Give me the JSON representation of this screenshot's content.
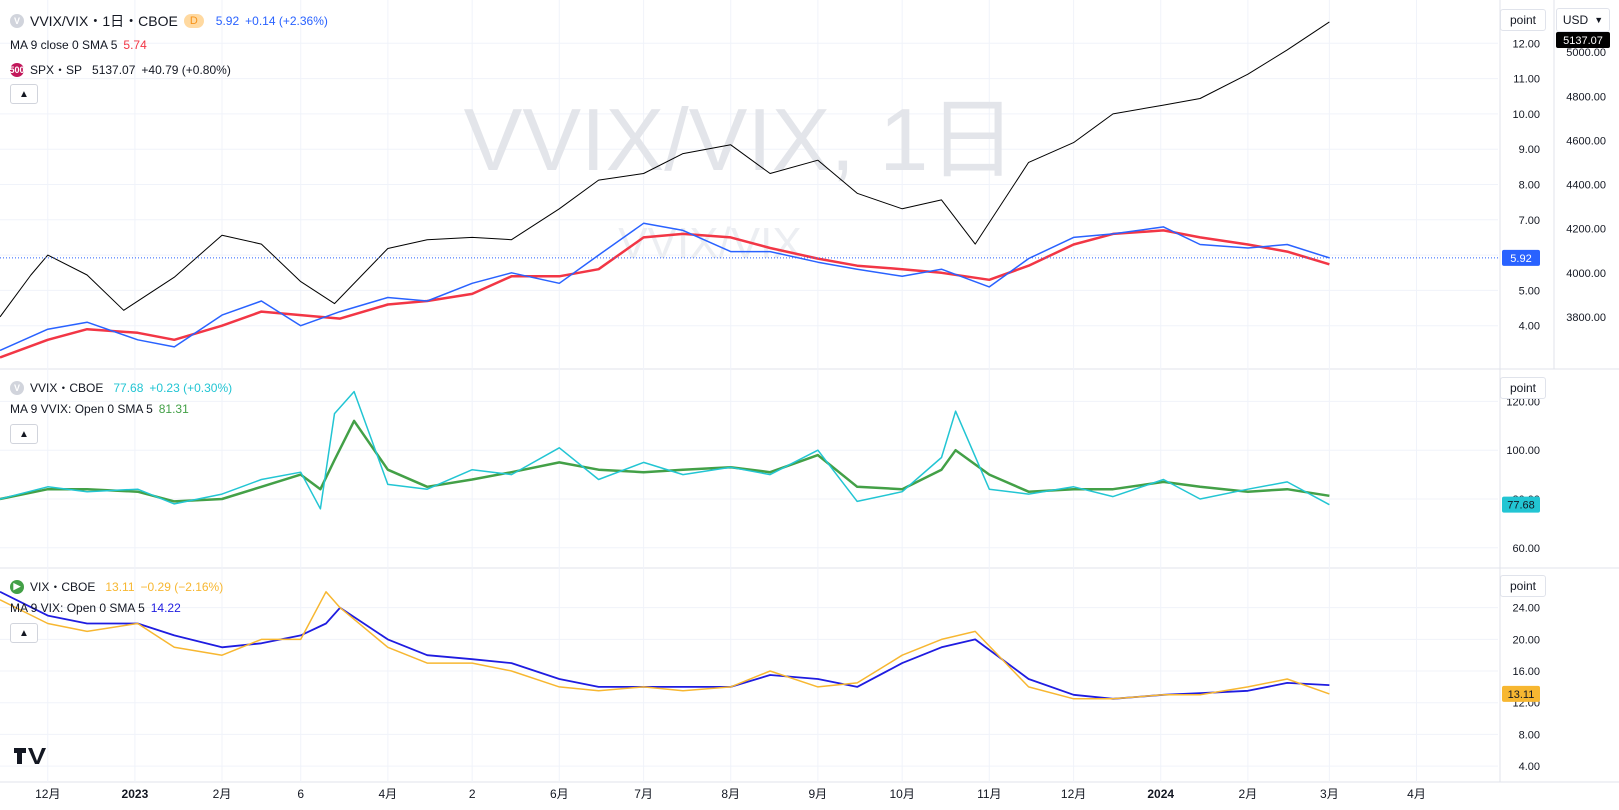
{
  "toolbar": {
    "currency": "USD",
    "scale_mode_label": "point"
  },
  "watermark": {
    "main": "VVIX/VIX, 1日",
    "sub": "VVIX/VIX"
  },
  "panes": [
    {
      "legend": {
        "symbol": "VVIX/VIX・1日・CBOE",
        "interval_badge": "D",
        "last": "5.92",
        "change": "+0.14 (+2.36%)",
        "ma_label": "MA 9 close 0 SMA 5",
        "ma_value": "5.74",
        "overlay_icon_text": "500",
        "overlay_label": "SPX・SP",
        "overlay_last": "5137.07",
        "overlay_change": "+40.79 (+0.80%)"
      },
      "price_label": "5.92",
      "overlay_price_label": "5137.07"
    },
    {
      "legend": {
        "symbol": "VVIX・CBOE",
        "last": "77.68",
        "change": "+0.23 (+0.30%)",
        "ma_label": "MA 9 VVIX: Open 0 SMA 5",
        "ma_value": "81.31"
      },
      "price_label": "77.68"
    },
    {
      "legend": {
        "symbol": "VIX・CBOE",
        "last": "13.11",
        "change": "−0.29 (−2.16%)",
        "ma_label": "MA 9 VIX: Open 0 SMA 5",
        "ma_value": "14.22"
      },
      "price_label": "13.11"
    }
  ],
  "colors": {
    "ratio": "#2962ff",
    "ratio_ma": "#f23645",
    "spx": "#000000",
    "vvix": "#22c5d3",
    "vvix_ma": "#43a047",
    "vix": "#f7b731",
    "vix_ma": "#1f1ce0",
    "grid": "#f0f3fa",
    "axis_text": "#131722"
  },
  "chart_data": [
    {
      "type": "line",
      "title": "VVIX/VIX・1日・CBOE",
      "x_ticks": [
        "12月",
        "2023",
        "2月",
        "6",
        "4月",
        "2",
        "6月",
        "7月",
        "8月",
        "9月",
        "10月",
        "11月",
        "12月",
        "2024",
        "2月",
        "3月",
        "4月"
      ],
      "x_range": [
        "2022-11-14",
        "2024-04-30"
      ],
      "ylim": [
        3.0,
        13.0
      ],
      "y_ticks": [
        "4.00",
        "5.00",
        "6.00",
        "7.00",
        "8.00",
        "9.00",
        "10.00",
        "11.00",
        "12.00"
      ],
      "secondary_ylim": [
        3600,
        5200
      ],
      "secondary_y_ticks": [
        "3800.00",
        "4000.00",
        "4200.00",
        "4400.00",
        "4600.00",
        "4800.00",
        "5000.00"
      ],
      "series": [
        {
          "name": "VVIX/VIX",
          "axis": "left",
          "x": [
            "2022-11-14",
            "2022-12-01",
            "2022-12-15",
            "2023-01-02",
            "2023-01-15",
            "2023-02-01",
            "2023-02-15",
            "2023-03-01",
            "2023-03-15",
            "2023-04-01",
            "2023-04-15",
            "2023-05-01",
            "2023-05-15",
            "2023-06-01",
            "2023-06-15",
            "2023-07-01",
            "2023-07-15",
            "2023-08-01",
            "2023-08-15",
            "2023-09-01",
            "2023-09-15",
            "2023-10-01",
            "2023-10-15",
            "2023-11-01",
            "2023-11-15",
            "2023-12-01",
            "2023-12-15",
            "2024-01-02",
            "2024-01-15",
            "2024-02-01",
            "2024-02-15",
            "2024-03-01"
          ],
          "values": [
            3.3,
            3.9,
            4.1,
            3.6,
            3.4,
            4.3,
            4.7,
            4.0,
            4.4,
            4.8,
            4.7,
            5.2,
            5.5,
            5.2,
            6.0,
            6.9,
            6.7,
            6.1,
            6.1,
            5.8,
            5.6,
            5.4,
            5.6,
            5.1,
            5.9,
            6.5,
            6.6,
            6.8,
            6.3,
            6.2,
            6.3,
            5.92
          ]
        },
        {
          "name": "MA 9",
          "axis": "left",
          "x": [
            "2022-11-14",
            "2022-12-01",
            "2022-12-15",
            "2023-01-02",
            "2023-01-15",
            "2023-02-01",
            "2023-02-15",
            "2023-03-01",
            "2023-03-15",
            "2023-04-01",
            "2023-04-15",
            "2023-05-01",
            "2023-05-15",
            "2023-06-01",
            "2023-06-15",
            "2023-07-01",
            "2023-07-15",
            "2023-08-01",
            "2023-08-15",
            "2023-09-01",
            "2023-09-15",
            "2023-10-01",
            "2023-10-15",
            "2023-11-01",
            "2023-11-15",
            "2023-12-01",
            "2023-12-15",
            "2024-01-02",
            "2024-01-15",
            "2024-02-01",
            "2024-02-15",
            "2024-03-01"
          ],
          "values": [
            3.1,
            3.6,
            3.9,
            3.8,
            3.6,
            4.0,
            4.4,
            4.3,
            4.2,
            4.6,
            4.7,
            4.9,
            5.4,
            5.4,
            5.6,
            6.5,
            6.6,
            6.5,
            6.2,
            5.9,
            5.7,
            5.6,
            5.5,
            5.3,
            5.7,
            6.3,
            6.6,
            6.7,
            6.5,
            6.3,
            6.1,
            5.74
          ]
        },
        {
          "name": "SPX・SP",
          "axis": "right",
          "x": [
            "2022-11-14",
            "2022-11-25",
            "2022-12-01",
            "2022-12-15",
            "2022-12-28",
            "2023-01-15",
            "2023-02-01",
            "2023-02-15",
            "2023-03-01",
            "2023-03-13",
            "2023-04-01",
            "2023-04-15",
            "2023-05-01",
            "2023-05-15",
            "2023-06-01",
            "2023-06-15",
            "2023-07-01",
            "2023-07-15",
            "2023-08-01",
            "2023-08-15",
            "2023-09-01",
            "2023-09-15",
            "2023-10-01",
            "2023-10-15",
            "2023-10-27",
            "2023-11-15",
            "2023-12-01",
            "2023-12-15",
            "2024-01-02",
            "2024-01-15",
            "2024-02-01",
            "2024-02-15",
            "2024-03-01"
          ],
          "values": [
            3800,
            3990,
            4080,
            3990,
            3830,
            3980,
            4170,
            4130,
            3960,
            3860,
            4110,
            4150,
            4160,
            4150,
            4290,
            4420,
            4450,
            4540,
            4580,
            4450,
            4510,
            4360,
            4290,
            4330,
            4130,
            4500,
            4590,
            4720,
            4760,
            4790,
            4900,
            5010,
            5137.07
          ]
        }
      ]
    },
    {
      "type": "line",
      "title": "VVIX・CBOE",
      "ylim": [
        55,
        130
      ],
      "y_ticks": [
        "60.00",
        "80.00",
        "100.00",
        "120.00"
      ],
      "series": [
        {
          "name": "VVIX",
          "x": [
            "2022-11-14",
            "2022-12-01",
            "2022-12-15",
            "2023-01-02",
            "2023-01-15",
            "2023-02-01",
            "2023-02-15",
            "2023-03-01",
            "2023-03-08",
            "2023-03-13",
            "2023-03-20",
            "2023-04-01",
            "2023-04-15",
            "2023-05-01",
            "2023-05-15",
            "2023-06-01",
            "2023-06-15",
            "2023-07-01",
            "2023-07-15",
            "2023-08-01",
            "2023-08-15",
            "2023-09-01",
            "2023-09-15",
            "2023-10-01",
            "2023-10-15",
            "2023-10-20",
            "2023-11-01",
            "2023-11-15",
            "2023-12-01",
            "2023-12-15",
            "2024-01-02",
            "2024-01-15",
            "2024-02-01",
            "2024-02-15",
            "2024-03-01"
          ],
          "values": [
            80,
            85,
            83,
            84,
            78,
            82,
            88,
            91,
            76,
            115,
            124,
            86,
            84,
            92,
            90,
            101,
            88,
            95,
            90,
            93,
            90,
            100,
            79,
            83,
            97,
            116,
            84,
            82,
            85,
            81,
            88,
            80,
            84,
            87,
            77.68
          ]
        },
        {
          "name": "MA 9",
          "x": [
            "2022-11-14",
            "2022-12-01",
            "2022-12-15",
            "2023-01-02",
            "2023-01-15",
            "2023-02-01",
            "2023-02-15",
            "2023-03-01",
            "2023-03-08",
            "2023-03-13",
            "2023-03-20",
            "2023-04-01",
            "2023-04-15",
            "2023-05-01",
            "2023-05-15",
            "2023-06-01",
            "2023-06-15",
            "2023-07-01",
            "2023-07-15",
            "2023-08-01",
            "2023-08-15",
            "2023-09-01",
            "2023-09-15",
            "2023-10-01",
            "2023-10-15",
            "2023-10-20",
            "2023-11-01",
            "2023-11-15",
            "2023-12-01",
            "2023-12-15",
            "2024-01-02",
            "2024-01-15",
            "2024-02-01",
            "2024-02-15",
            "2024-03-01"
          ],
          "values": [
            80,
            84,
            84,
            83,
            79,
            80,
            85,
            90,
            84,
            96,
            112,
            92,
            85,
            88,
            91,
            95,
            92,
            91,
            92,
            93,
            91,
            98,
            85,
            84,
            92,
            100,
            90,
            83,
            84,
            84,
            87,
            85,
            83,
            84,
            81.31
          ]
        }
      ]
    },
    {
      "type": "line",
      "title": "VIX・CBOE",
      "ylim": [
        3,
        28
      ],
      "y_ticks": [
        "4.00",
        "8.00",
        "12.00",
        "16.00",
        "20.00",
        "24.00"
      ],
      "series": [
        {
          "name": "VIX",
          "x": [
            "2022-11-14",
            "2022-12-01",
            "2022-12-15",
            "2023-01-02",
            "2023-01-15",
            "2023-02-01",
            "2023-02-15",
            "2023-03-01",
            "2023-03-10",
            "2023-03-15",
            "2023-04-01",
            "2023-04-15",
            "2023-05-01",
            "2023-05-15",
            "2023-06-01",
            "2023-06-15",
            "2023-07-01",
            "2023-07-15",
            "2023-08-01",
            "2023-08-15",
            "2023-09-01",
            "2023-09-15",
            "2023-10-01",
            "2023-10-15",
            "2023-10-27",
            "2023-11-15",
            "2023-12-01",
            "2023-12-15",
            "2024-01-02",
            "2024-01-15",
            "2024-02-01",
            "2024-02-15",
            "2024-03-01"
          ],
          "values": [
            25,
            22,
            21,
            22,
            19,
            18,
            20,
            20,
            26,
            24,
            19,
            17,
            17,
            16,
            14,
            13.5,
            14,
            13.5,
            14,
            16,
            14,
            14.5,
            18,
            20,
            21,
            14,
            12.5,
            12.5,
            13,
            13,
            14,
            15,
            13.11
          ]
        },
        {
          "name": "MA 9",
          "x": [
            "2022-11-14",
            "2022-12-01",
            "2022-12-15",
            "2023-01-02",
            "2023-01-15",
            "2023-02-01",
            "2023-02-15",
            "2023-03-01",
            "2023-03-10",
            "2023-03-15",
            "2023-04-01",
            "2023-04-15",
            "2023-05-01",
            "2023-05-15",
            "2023-06-01",
            "2023-06-15",
            "2023-07-01",
            "2023-07-15",
            "2023-08-01",
            "2023-08-15",
            "2023-09-01",
            "2023-09-15",
            "2023-10-01",
            "2023-10-15",
            "2023-10-27",
            "2023-11-15",
            "2023-12-01",
            "2023-12-15",
            "2024-01-02",
            "2024-01-15",
            "2024-02-01",
            "2024-02-15",
            "2024-03-01"
          ],
          "values": [
            26,
            23,
            22,
            22,
            20.5,
            19,
            19.5,
            20.5,
            22,
            24,
            20,
            18,
            17.5,
            17,
            15,
            14,
            14,
            14,
            14,
            15.5,
            15,
            14,
            17,
            19,
            20,
            15,
            13,
            12.5,
            13,
            13.2,
            13.5,
            14.5,
            14.22
          ]
        }
      ]
    }
  ]
}
